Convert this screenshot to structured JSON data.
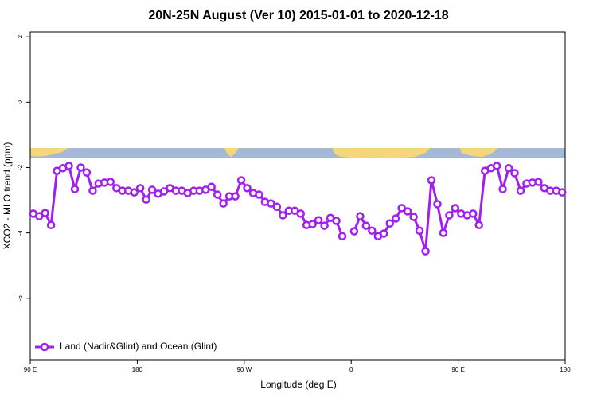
{
  "chart_data": {
    "type": "line",
    "title": "20N-25N August (Ver 10)   2015-01-01 to 2020-12-18",
    "xlabel": "Longitude (deg E)",
    "ylabel": "XCO2 - MLO trend (ppm)",
    "xlim": [
      90,
      540
    ],
    "ylim": [
      -7.88,
      2.15
    ],
    "xticks": [
      {
        "value": 90,
        "label": "90 E"
      },
      180,
      {
        "value": 270,
        "label": "90 W"
      },
      {
        "value": 360,
        "label": "0"
      },
      {
        "value": 450,
        "label": "90 E"
      },
      {
        "value": 540,
        "label": "180"
      }
    ],
    "yticks": [
      2,
      0,
      -2,
      -4,
      -6
    ],
    "legend": "bottom-left",
    "x": [
      92.5,
      97.5,
      102.5,
      107.5,
      112.5,
      117.5,
      122.5,
      127.5,
      132.5,
      137.5,
      142.5,
      147.5,
      152.5,
      157.5,
      162.5,
      167.5,
      172.5,
      177.5,
      182.5,
      187.5,
      192.5,
      197.5,
      202.5,
      207.5,
      212.5,
      217.5,
      222.5,
      227.5,
      232.5,
      237.5,
      242.5,
      247.5,
      252.5,
      257.5,
      262.5,
      267.5,
      272.5,
      277.5,
      282.5,
      287.5,
      292.5,
      297.5,
      302.5,
      307.5,
      312.5,
      317.5,
      322.5,
      327.5,
      332.5,
      337.5,
      342.5,
      347.5,
      352.5,
      357.5,
      362.5,
      367.5,
      372.5,
      377.5,
      382.5,
      387.5,
      392.5,
      397.5,
      402.5,
      407.5,
      412.5,
      417.5,
      422.5,
      427.5,
      432.5,
      437.5,
      442.5,
      447.5,
      452.5,
      457.5,
      462.5,
      467.5,
      472.5,
      477.5,
      482.5,
      487.5,
      492.5,
      497.5,
      502.5,
      507.5,
      512.5,
      517.5,
      522.5,
      527.5,
      532.5,
      537.5
    ],
    "series": [
      {
        "name": "Land (Nadir&Glint) and Ocean (Glint)",
        "color": "#a020f0",
        "values": [
          -3.41,
          -3.49,
          -3.39,
          -3.76,
          -2.1,
          -2.02,
          -1.95,
          -2.66,
          -2.0,
          -2.15,
          -2.71,
          -2.49,
          -2.46,
          -2.44,
          -2.63,
          -2.71,
          -2.71,
          -2.76,
          -2.63,
          -2.98,
          -2.68,
          -2.8,
          -2.73,
          -2.63,
          -2.71,
          -2.71,
          -2.78,
          -2.71,
          -2.71,
          -2.68,
          -2.59,
          -2.83,
          -3.1,
          -2.88,
          -2.88,
          -2.39,
          -2.63,
          -2.78,
          -2.83,
          -3.05,
          -3.1,
          -3.2,
          -3.46,
          -3.32,
          -3.32,
          -3.41,
          -3.76,
          -3.73,
          -3.61,
          -3.78,
          -3.54,
          -3.63,
          -4.1,
          null,
          -3.95,
          -3.49,
          -3.78,
          -3.93,
          -4.1,
          -4.02,
          -3.71,
          -3.56,
          -3.24,
          -3.34,
          -3.51,
          -3.93,
          -4.56,
          -2.39,
          -3.12,
          -4.0,
          -3.46,
          -3.24,
          -3.41,
          -3.46,
          -3.41,
          -3.76,
          -2.1,
          -2.02,
          -1.95,
          -2.66,
          -2.02,
          -2.17,
          -2.71,
          -2.49,
          -2.46,
          -2.44,
          -2.63,
          -2.71,
          -2.71,
          -2.76
        ]
      }
    ]
  }
}
